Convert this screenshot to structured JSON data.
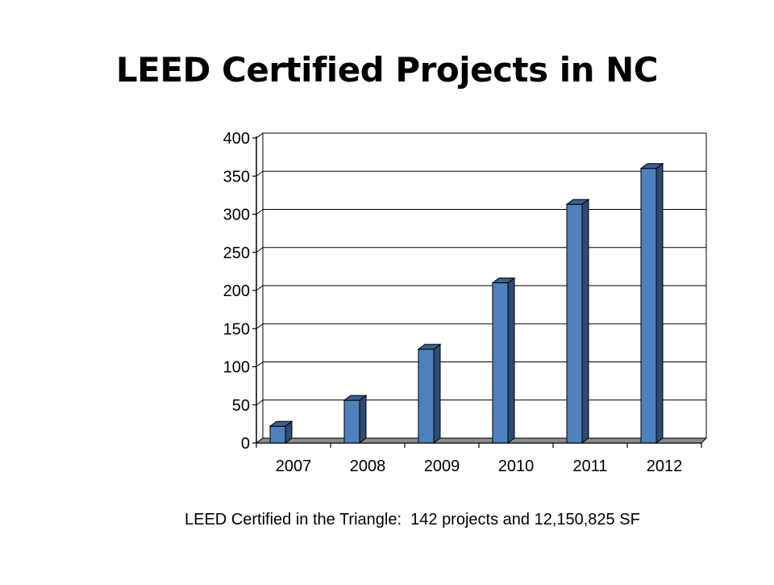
{
  "slide": {
    "title": "LEED Certified Projects in NC",
    "caption": "LEED Certified in the Triangle:  142 projects and 12,150,825 SF"
  },
  "chart_data": {
    "type": "bar",
    "title": "",
    "xlabel": "",
    "ylabel": "",
    "categories": [
      "2007",
      "2008",
      "2009",
      "2010",
      "2011",
      "2012"
    ],
    "values": [
      22,
      56,
      123,
      210,
      313,
      360
    ],
    "ylim": [
      0,
      400
    ],
    "yticks": [
      "0",
      "50",
      "100",
      "150",
      "200",
      "250",
      "300",
      "350",
      "400"
    ],
    "grid": true,
    "legend": "none",
    "colors": {
      "bar_front": "#4F81BD",
      "bar_side": "#2D4B73",
      "bar_top": "#3A5F91",
      "floor": "#8C8C8C",
      "grid": "#000000"
    }
  }
}
